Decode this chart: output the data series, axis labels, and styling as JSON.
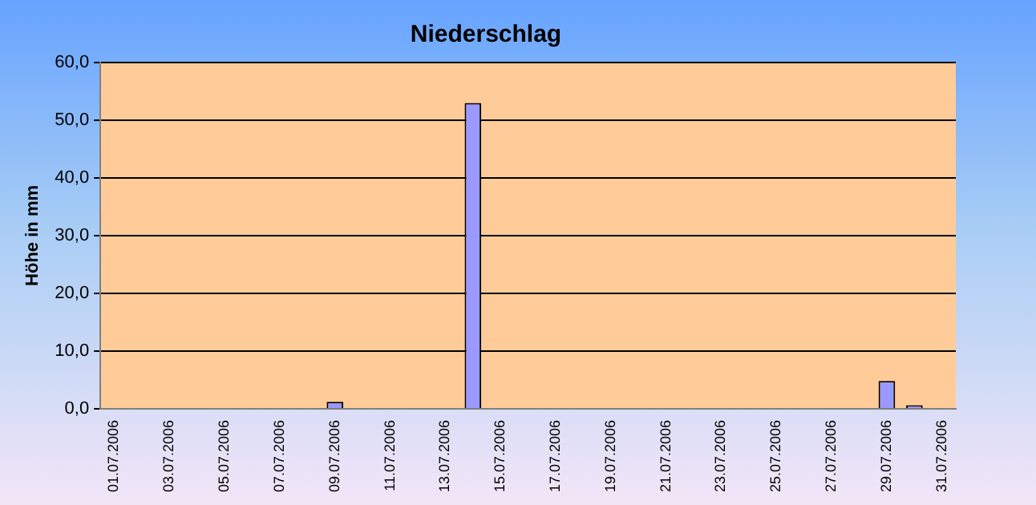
{
  "chart_data": {
    "type": "bar",
    "title": "Niederschlag",
    "ylabel": "Höhe in mm",
    "categories": [
      "01.07.2006",
      null,
      "03.07.2006",
      null,
      "05.07.2006",
      null,
      "07.07.2006",
      null,
      "09.07.2006",
      null,
      "11.07.2006",
      null,
      "13.07.2006",
      null,
      "15.07.2006",
      null,
      "17.07.2006",
      null,
      "19.07.2006",
      null,
      "21.07.2006",
      null,
      "23.07.2006",
      null,
      "25.07.2006",
      null,
      "27.07.2006",
      null,
      "29.07.2006",
      null,
      "31.07.2006"
    ],
    "values": [
      0,
      0,
      0,
      0,
      0,
      0,
      0,
      0,
      1.2,
      0,
      0,
      0,
      0,
      53,
      0,
      0,
      0,
      0,
      0,
      0,
      0,
      0,
      0,
      0,
      0,
      0,
      0,
      0,
      4.8,
      0.6,
      0
    ],
    "color": "#9999ff",
    "ylim": [
      0,
      60
    ],
    "yticks": [
      {
        "value": 0,
        "label": "0,0"
      },
      {
        "value": 10,
        "label": "10,0"
      },
      {
        "value": 20,
        "label": "20,0"
      },
      {
        "value": 30,
        "label": "30,0"
      },
      {
        "value": 40,
        "label": "40,0"
      },
      {
        "value": 50,
        "label": "50,0"
      },
      {
        "value": 60,
        "label": "60,0"
      }
    ],
    "grid": "y",
    "legend": false
  }
}
